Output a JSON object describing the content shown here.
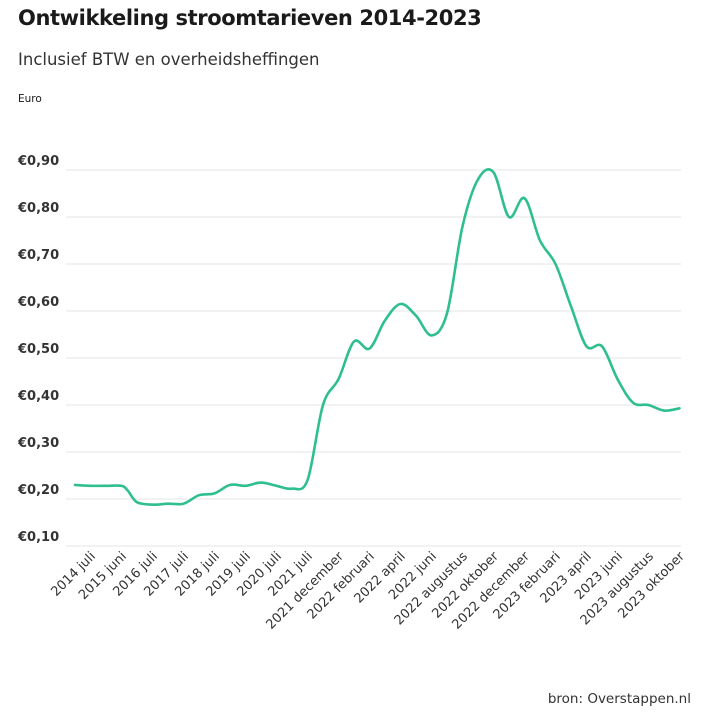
{
  "title": {
    "main": "Ontwikkeling stroomtarieven ",
    "years": "2014-2023"
  },
  "subtitle": "Inclusief BTW en overheidsheffingen",
  "source": "bron: Overstappen.nl",
  "colors": {
    "line": "#2fbf8f",
    "grid": "#e6e6e6"
  },
  "chart_data": {
    "type": "line",
    "ylabel": "Euro",
    "ylim": [
      0.1,
      0.9
    ],
    "y_ticks": [
      0.1,
      0.2,
      0.3,
      0.4,
      0.5,
      0.6,
      0.7,
      0.8,
      0.9
    ],
    "y_tick_labels": [
      "€0,10",
      "€0,20",
      "€0,30",
      "€0,40",
      "€0,50",
      "€0,60",
      "€0,70",
      "€0,80",
      "€0,90"
    ],
    "grid": true,
    "categories": [
      "2014 juli",
      "2015 juni",
      "2016 juli",
      "2017 juli",
      "2018 juli",
      "2019 juli",
      "2020 juli",
      "2021 juli",
      "2021 december",
      "2022 februari",
      "2022 april",
      "2022 juni",
      "2022 augustus",
      "2022 oktober",
      "2022 december",
      "2023 februari",
      "2023 april",
      "2023 juni",
      "2023 augustus",
      "2023 oktober"
    ],
    "series": [
      {
        "points": [
          [
            0.0,
            0.23
          ],
          [
            0.5,
            0.228
          ],
          [
            1.0,
            0.228
          ],
          [
            1.5,
            0.228
          ],
          [
            1.7,
            0.218
          ],
          [
            2.0,
            0.193
          ],
          [
            2.5,
            0.188
          ],
          [
            3.0,
            0.19
          ],
          [
            3.5,
            0.19
          ],
          [
            4.0,
            0.208
          ],
          [
            4.5,
            0.212
          ],
          [
            5.0,
            0.23
          ],
          [
            5.5,
            0.228
          ],
          [
            6.0,
            0.235
          ],
          [
            6.5,
            0.228
          ],
          [
            7.0,
            0.222
          ],
          [
            7.5,
            0.24
          ],
          [
            8.0,
            0.4
          ],
          [
            8.5,
            0.455
          ],
          [
            9.0,
            0.535
          ],
          [
            9.5,
            0.52
          ],
          [
            10.0,
            0.58
          ],
          [
            10.5,
            0.615
          ],
          [
            11.0,
            0.59
          ],
          [
            11.5,
            0.548
          ],
          [
            12.0,
            0.595
          ],
          [
            12.5,
            0.78
          ],
          [
            13.0,
            0.88
          ],
          [
            13.5,
            0.895
          ],
          [
            14.0,
            0.8
          ],
          [
            14.5,
            0.84
          ],
          [
            15.0,
            0.75
          ],
          [
            15.5,
            0.7
          ],
          [
            16.0,
            0.61
          ],
          [
            16.5,
            0.525
          ],
          [
            17.0,
            0.525
          ],
          [
            17.5,
            0.455
          ],
          [
            18.0,
            0.405
          ],
          [
            18.5,
            0.4
          ],
          [
            19.0,
            0.388
          ],
          [
            19.5,
            0.393
          ]
        ]
      }
    ]
  }
}
